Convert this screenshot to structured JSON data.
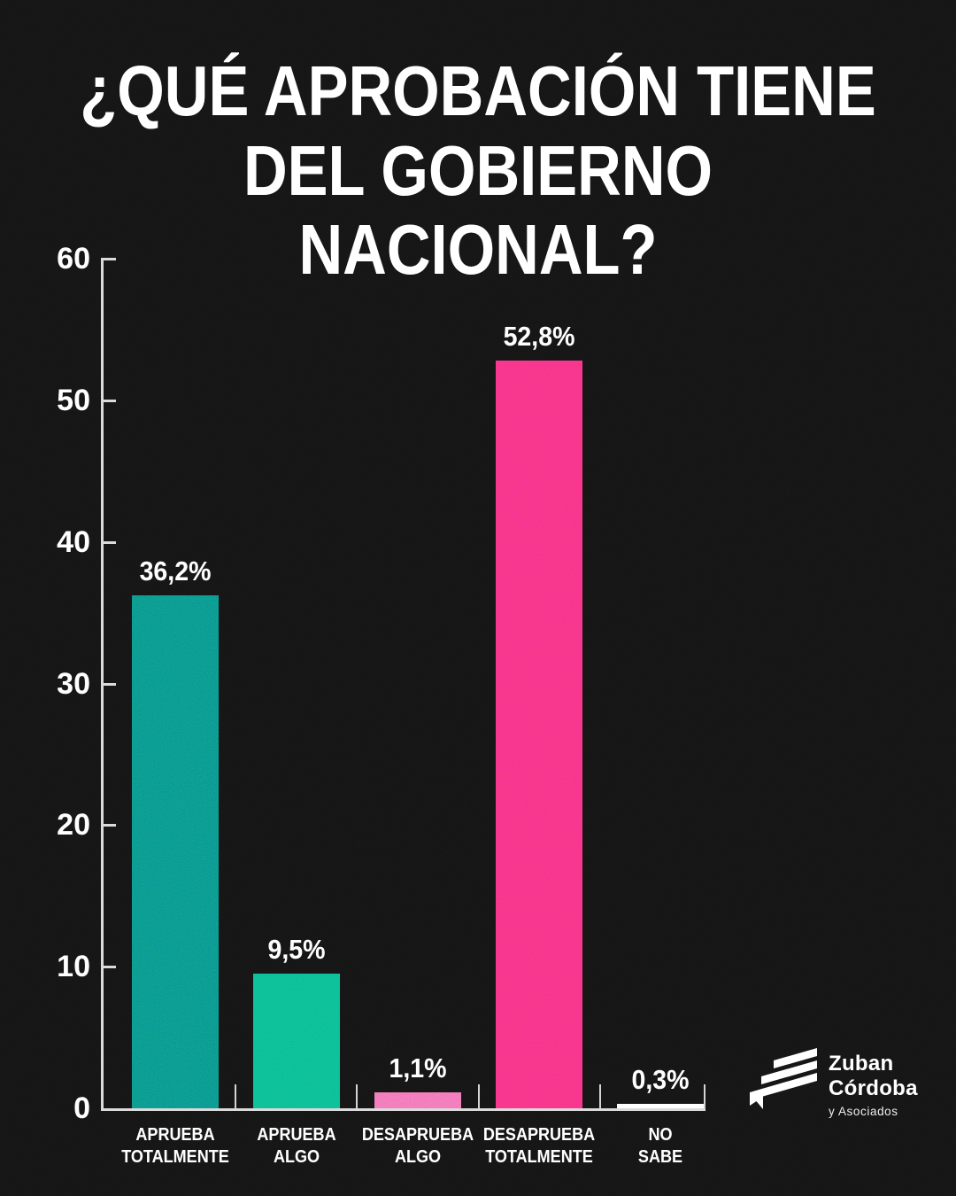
{
  "title": {
    "line1": "¿QUÉ APROBACIÓN TIENE",
    "line2": "DEL GOBIERNO NACIONAL?"
  },
  "chart_data": {
    "type": "bar",
    "title": "¿QUÉ APROBACIÓN TIENE DEL GOBIERNO NACIONAL?",
    "categories": [
      [
        "APRUEBA",
        "TOTALMENTE"
      ],
      [
        "APRUEBA",
        "ALGO"
      ],
      [
        "DESAPRUEBA",
        "ALGO"
      ],
      [
        "DESAPRUEBA",
        "TOTALMENTE"
      ],
      [
        "NO",
        "SABE"
      ]
    ],
    "values": [
      36.2,
      9.5,
      1.1,
      52.8,
      0.3
    ],
    "value_labels": [
      "36,2%",
      "9,5%",
      "1,1%",
      "52,8%",
      "0,3%"
    ],
    "colors": [
      "#0B9287",
      "#0CBA8E",
      "#F272B6",
      "#F83181",
      "#FFFFFF"
    ],
    "xlabel": "",
    "ylabel": "",
    "ylim": [
      0,
      60
    ],
    "yticks": [
      0,
      10,
      20,
      30,
      40,
      50,
      60
    ],
    "grid": false,
    "legend": "none",
    "axis_color": "#D6D6D6",
    "background": "#141414",
    "text_color": "#FFFFFF"
  },
  "brand": {
    "name_line1": "Zuban",
    "name_line2": "Córdoba",
    "tagline": "y Asociados",
    "logo_icon": "diagonal-stripes"
  }
}
